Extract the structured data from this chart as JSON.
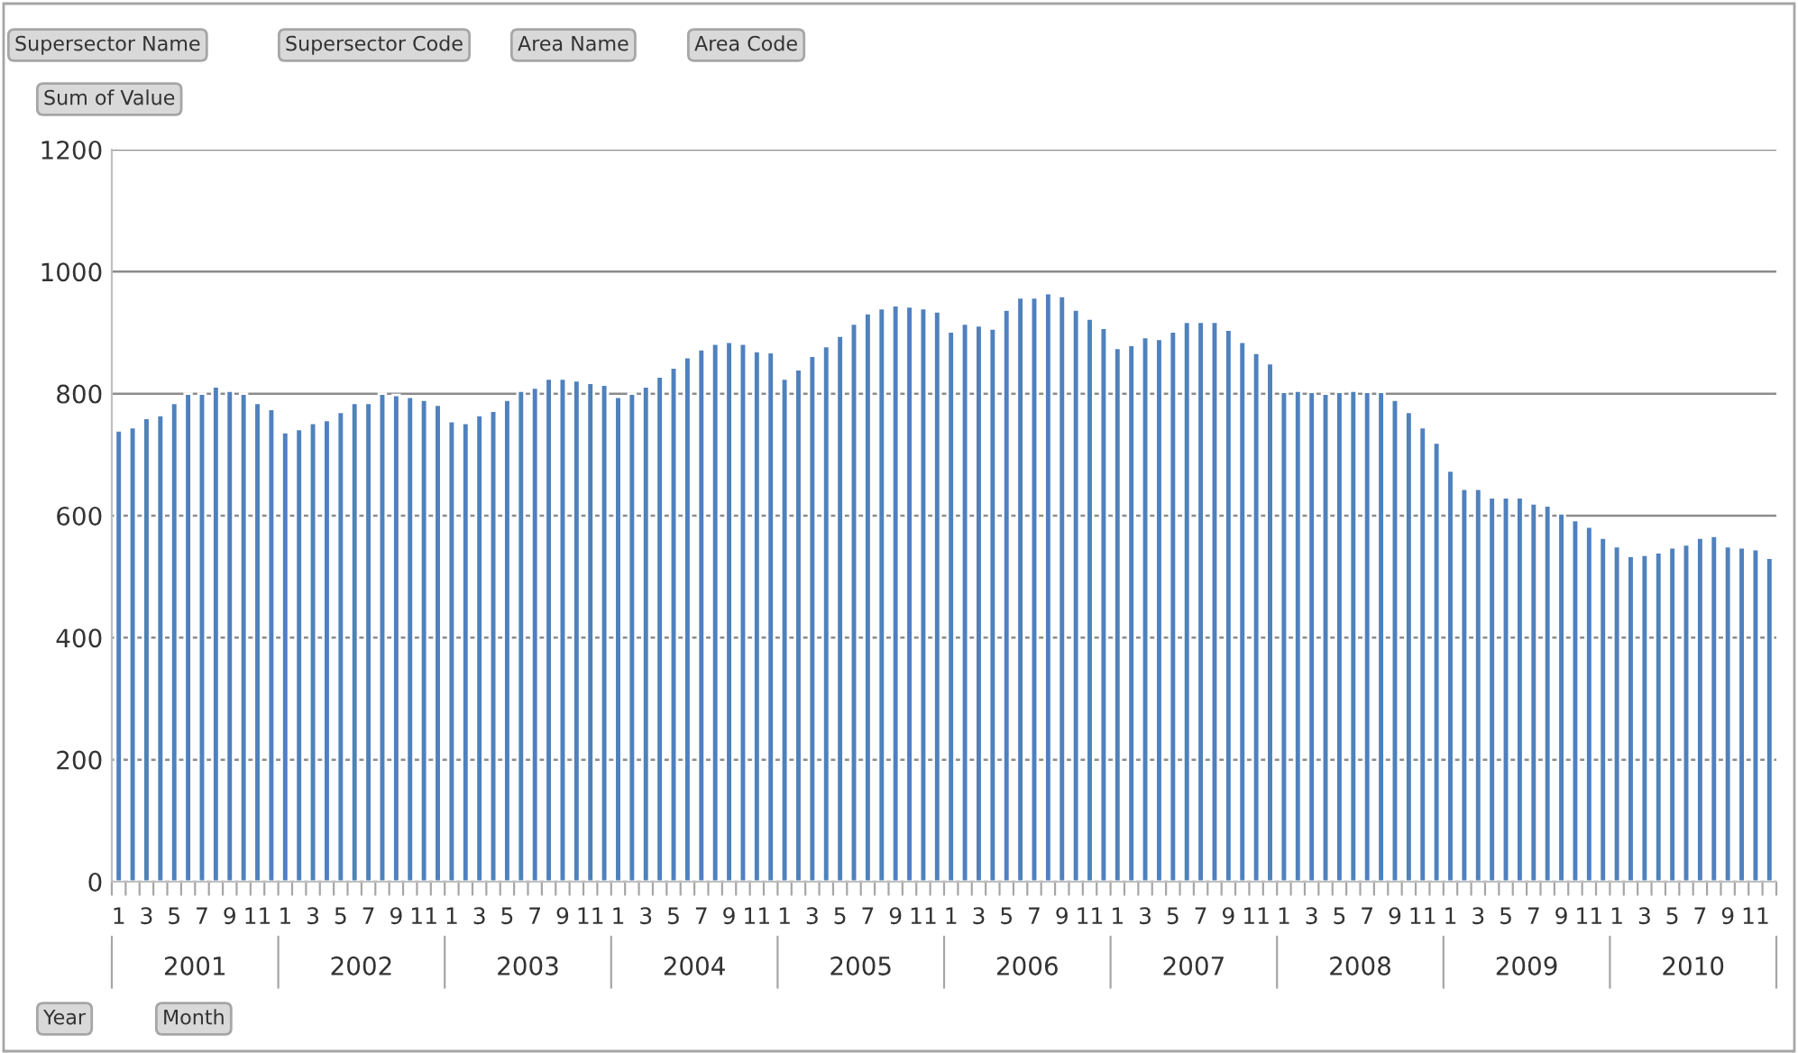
{
  "chart_data": {
    "type": "bar",
    "categories": [
      "1",
      null,
      "3",
      null,
      "5",
      null,
      "7",
      null,
      "9",
      null,
      "11",
      null,
      "1",
      null,
      "3",
      null,
      "5",
      null,
      "7",
      null,
      "9",
      null,
      "11",
      null,
      "1",
      null,
      "3",
      null,
      "5",
      null,
      "7",
      null,
      "9",
      null,
      "11",
      null,
      "1",
      null,
      "3",
      null,
      "5",
      null,
      "7",
      null,
      "9",
      null,
      "11",
      null,
      "1",
      null,
      "3",
      null,
      "5",
      null,
      "7",
      null,
      "9",
      null,
      "11",
      null,
      "1",
      null,
      "3",
      null,
      "5",
      null,
      "7",
      null,
      "9",
      null,
      "11",
      null,
      "1",
      null,
      "3",
      null,
      "5",
      null,
      "7",
      null,
      "9",
      null,
      "11",
      null,
      "1",
      null,
      "3",
      null,
      "5",
      null,
      "7",
      null,
      "9",
      null,
      "11",
      null,
      "1",
      null,
      "3",
      null,
      "5",
      null,
      "7",
      null,
      "9",
      null,
      "11",
      null,
      "1",
      null,
      "3",
      null,
      "5",
      null,
      "7",
      null,
      "9",
      null,
      "11",
      null
    ],
    "values": [
      740,
      745,
      760,
      765,
      785,
      800,
      800,
      812,
      805,
      800,
      785,
      775,
      737,
      742,
      752,
      757,
      770,
      785,
      785,
      800,
      798,
      795,
      790,
      782,
      755,
      752,
      765,
      772,
      790,
      805,
      810,
      825,
      825,
      822,
      818,
      815,
      795,
      800,
      812,
      828,
      843,
      860,
      873,
      882,
      885,
      882,
      870,
      868,
      825,
      840,
      862,
      878,
      895,
      915,
      932,
      940,
      945,
      943,
      940,
      935,
      902,
      915,
      912,
      907,
      938,
      958,
      958,
      965,
      960,
      938,
      923,
      908,
      875,
      880,
      893,
      890,
      902,
      918,
      918,
      918,
      905,
      885,
      867,
      850,
      803,
      805,
      803,
      800,
      803,
      805,
      803,
      803,
      790,
      770,
      745,
      720,
      674,
      644,
      644,
      630,
      630,
      630,
      620,
      617,
      604,
      593,
      582,
      564,
      550,
      534,
      536,
      540,
      548,
      553,
      564,
      567,
      550,
      548,
      545,
      531
    ],
    "color": "#4f81bd",
    "ylim": [
      0,
      1200
    ],
    "yticks": [
      0,
      200,
      400,
      600,
      800,
      1000,
      1200
    ],
    "grid": "y",
    "annotations": [
      "Supersector Name",
      "Supersector Code",
      "Area Name",
      "Area Code",
      "Sum of Value",
      "2001",
      "2002",
      "2003",
      "2004",
      "2005",
      "2006",
      "2007",
      "2008",
      "2009",
      "2010",
      "Year",
      "Month"
    ]
  }
}
